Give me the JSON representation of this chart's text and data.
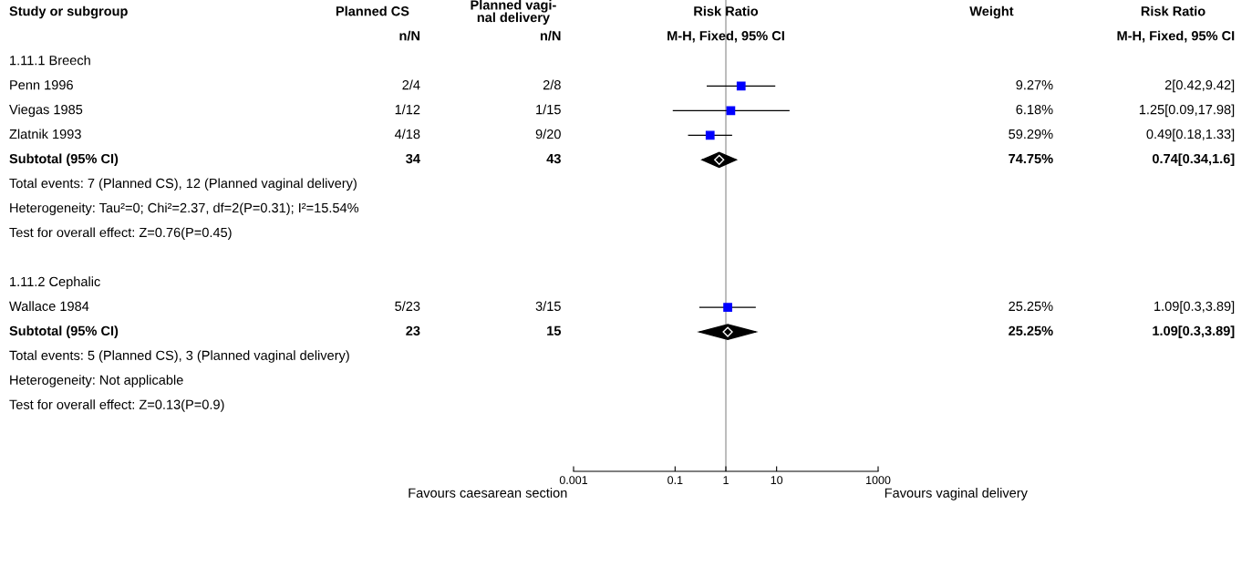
{
  "chart_data": [
    {
      "type": "other",
      "categories": [
        "Planned CS",
        "Planned vagi-\nnal delivery"
      ],
      "cell_labels": [
        [
          "n/N",
          "n/N"
        ],
        [
          null,
          null
        ],
        [
          "2/4",
          "2/8"
        ],
        [
          "1/12",
          "1/15"
        ],
        [
          "4/18",
          "9/20"
        ],
        [
          "34",
          "43"
        ],
        [
          null,
          null
        ],
        [
          null,
          null
        ],
        [
          null,
          null
        ],
        [
          null,
          null
        ],
        [
          null,
          null
        ],
        [
          "5/23",
          "3/15"
        ],
        [
          "23",
          "15"
        ],
        [
          null,
          null
        ],
        [
          null,
          null
        ],
        [
          null,
          null
        ],
        [
          null,
          null
        ]
      ]
    },
    {
      "type": "scatter",
      "orientation": "horizontal",
      "title": "Risk Ratio",
      "subtitle": "M-H, Fixed, 95% CI",
      "ylabel": "Study or subgroup",
      "categories": [
        null,
        "1.11.1 Breech",
        "Penn 1996",
        "Viegas 1985",
        "Zlatnik 1993",
        "Subtotal (95% CI)",
        "Total events: 7 (Planned CS), 12 (Planned vaginal delivery)",
        "Heterogeneity: Tau²=0; Chi²=2.37, df=2(P=0.31); I²=15.54%",
        "Test for overall effect: Z=0.76(P=0.45)",
        null,
        "1.11.2 Cephalic",
        "Wallace 1984",
        "Subtotal (95% CI)",
        "Total events: 5 (Planned CS), 3 (Planned vaginal delivery)",
        "Heterogeneity: Not applicable",
        "Test for overall effect: Z=0.13(P=0.9)",
        null
      ],
      "series": [
        {
          "color": "#0000ff",
          "marker": "square",
          "values": [
            null,
            null,
            2,
            1.25,
            0.49,
            null,
            null,
            null,
            null,
            null,
            null,
            1.09,
            null,
            null,
            null,
            null,
            null
          ],
          "errors": [
            null,
            null,
            [
              0.42,
              9.42
            ],
            [
              0.09,
              17.98
            ],
            [
              0.18,
              1.33
            ],
            null,
            null,
            null,
            null,
            null,
            null,
            [
              0.3,
              3.89
            ],
            null,
            null,
            null,
            null,
            null
          ]
        },
        {
          "color": "#000000",
          "marker": "diamond",
          "values": [
            null,
            null,
            null,
            null,
            null,
            0.74,
            null,
            null,
            null,
            null,
            null,
            null,
            1.09,
            null,
            null,
            null,
            null
          ],
          "errors": [
            null,
            null,
            null,
            null,
            null,
            [
              0.34,
              1.6
            ],
            null,
            null,
            null,
            null,
            null,
            null,
            [
              0.3,
              3.89
            ],
            null,
            null,
            null,
            null
          ]
        }
      ],
      "log": "x",
      "tick_labels": "x",
      "xlim": [
        0.001,
        1000
      ],
      "xticks": [
        0.001,
        0.1,
        1,
        10,
        1000
      ],
      "ref_lines": [
        {
          "axis": "x",
          "value": 1,
          "color": "#a0a0a0"
        }
      ],
      "annotations": [
        "Favours caesarean section",
        "Favours vaginal delivery"
      ]
    },
    {
      "type": "other",
      "categories": [
        "Weight",
        "Risk Ratio"
      ],
      "cell_labels": [
        [
          null,
          "M-H, Fixed, 95% CI"
        ],
        [
          null,
          null
        ],
        [
          "9.27%",
          "2[0.42,9.42]"
        ],
        [
          "6.18%",
          "1.25[0.09,17.98]"
        ],
        [
          "59.29%",
          "0.49[0.18,1.33]"
        ],
        [
          "74.75%",
          "0.74[0.34,1.6]"
        ],
        [
          null,
          null
        ],
        [
          null,
          null
        ],
        [
          null,
          null
        ],
        [
          null,
          null
        ],
        [
          null,
          null
        ],
        [
          "25.25%",
          "1.09[0.3,3.89]"
        ],
        [
          "25.25%",
          "1.09[0.3,3.89]"
        ],
        [
          null,
          null
        ],
        [
          null,
          null
        ],
        [
          null,
          null
        ],
        [
          null,
          null
        ]
      ]
    }
  ]
}
